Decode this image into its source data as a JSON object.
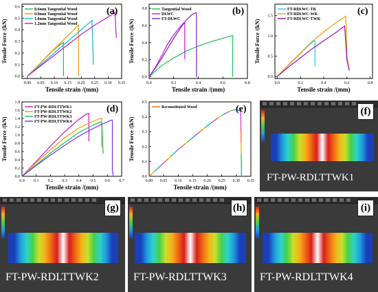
{
  "charts": [
    {
      "label": "(a)",
      "type": "line",
      "ylabel": "Tensile Force  /(kN)",
      "xlabel": "Tensile strain  /(mm)",
      "xlim": [
        -0.02,
        0.35
      ],
      "ylim": [
        -0.02,
        0.62
      ],
      "xticks": [
        0.0,
        0.05,
        0.1,
        0.15,
        0.2,
        0.25,
        0.3,
        0.35
      ],
      "xtick_labels": [
        "0.00",
        "0.05",
        "0.10",
        "0.15",
        "0.20",
        "0.25",
        "0.30",
        "0.35"
      ],
      "yticks": [
        0.0,
        0.1,
        0.2,
        0.3,
        0.4,
        0.5,
        0.6
      ],
      "ytick_labels": [
        "0.0",
        "0.1",
        "0.2",
        "0.3",
        "0.4",
        "0.5",
        "0.6"
      ],
      "legend_position": "top-left",
      "series": [
        {
          "name": "0.6mm Tangential Wood",
          "color": "#22c55e",
          "points": [
            [
              0,
              0
            ],
            [
              0.03,
              0.07
            ],
            [
              0.06,
              0.14
            ],
            [
              0.09,
              0.21
            ],
            [
              0.12,
              0.27
            ],
            [
              0.134,
              0.29
            ],
            [
              0.134,
              0.0
            ]
          ]
        },
        {
          "name": "0.8mm Tangential Wood",
          "color": "#f59e0b",
          "points": [
            [
              0,
              0
            ],
            [
              0.04,
              0.09
            ],
            [
              0.08,
              0.19
            ],
            [
              0.12,
              0.28
            ],
            [
              0.16,
              0.37
            ],
            [
              0.185,
              0.43
            ],
            [
              0.19,
              0.44
            ],
            [
              0.19,
              0.0
            ]
          ]
        },
        {
          "name": "1.0mm Tangential Wood",
          "color": "#22b8cf",
          "points": [
            [
              0,
              0
            ],
            [
              0.05,
              0.1
            ],
            [
              0.1,
              0.2
            ],
            [
              0.15,
              0.3
            ],
            [
              0.2,
              0.4
            ],
            [
              0.235,
              0.47
            ],
            [
              0.24,
              0.48
            ],
            [
              0.245,
              0.1
            ]
          ]
        },
        {
          "name": "1.2mm Tangential Wood",
          "color": "#c026d3",
          "points": [
            [
              0,
              0
            ],
            [
              0.05,
              0.09
            ],
            [
              0.1,
              0.18
            ],
            [
              0.15,
              0.27
            ],
            [
              0.2,
              0.36
            ],
            [
              0.25,
              0.44
            ],
            [
              0.3,
              0.51
            ],
            [
              0.32,
              0.54
            ],
            [
              0.325,
              0.55
            ],
            [
              0.33,
              0.33
            ]
          ]
        }
      ]
    },
    {
      "label": "(b)",
      "type": "line",
      "ylabel": "Tensile Force  /(kN)",
      "xlabel": "Tensile strain  /(mm)",
      "xlim": [
        0,
        0.8
      ],
      "ylim": [
        -0.02,
        0.85
      ],
      "xticks": [
        0.0,
        0.2,
        0.4,
        0.6,
        0.8
      ],
      "xtick_labels": [
        "0.0",
        "0.2",
        "0.4",
        "0.6",
        "0.8"
      ],
      "yticks": [
        0.0,
        0.2,
        0.4,
        0.6,
        0.8
      ],
      "ytick_labels": [
        "0.0",
        "0.2",
        "0.4",
        "0.6",
        "0.8"
      ],
      "legend_position": "top-left",
      "series": [
        {
          "name": "Tangential Wood",
          "color": "#22c55e",
          "points": [
            [
              0,
              0
            ],
            [
              0.1,
              0.13
            ],
            [
              0.2,
              0.22
            ],
            [
              0.3,
              0.3
            ],
            [
              0.4,
              0.36
            ],
            [
              0.5,
              0.41
            ],
            [
              0.6,
              0.45
            ],
            [
              0.67,
              0.48
            ],
            [
              0.68,
              0.48
            ],
            [
              0.68,
              0.0
            ]
          ]
        },
        {
          "name": "DLWC",
          "color": "#c026d3",
          "points": [
            [
              0,
              0
            ],
            [
              0.05,
              0.11
            ],
            [
              0.1,
              0.24
            ],
            [
              0.15,
              0.38
            ],
            [
              0.2,
              0.49
            ],
            [
              0.25,
              0.58
            ],
            [
              0.28,
              0.63
            ],
            [
              0.29,
              0.63
            ],
            [
              0.29,
              0.21
            ]
          ]
        },
        {
          "name": "FT-DLWC",
          "color": "#8b2fc9",
          "points": [
            [
              0,
              0
            ],
            [
              0.05,
              0.1
            ],
            [
              0.1,
              0.21
            ],
            [
              0.15,
              0.33
            ],
            [
              0.2,
              0.45
            ],
            [
              0.25,
              0.56
            ],
            [
              0.3,
              0.66
            ],
            [
              0.35,
              0.73
            ],
            [
              0.38,
              0.75
            ],
            [
              0.385,
              0.75
            ],
            [
              0.385,
              0.0
            ]
          ]
        }
      ]
    },
    {
      "label": "(c)",
      "type": "line",
      "ylabel": "Tensile Force  /(kN)",
      "xlabel": "Tensile strain  /(mm)",
      "xlim": [
        -0.02,
        0.82
      ],
      "ylim": [
        -0.05,
        1.78
      ],
      "xticks": [
        0.0,
        0.2,
        0.4,
        0.6,
        0.8
      ],
      "xtick_labels": [
        "0.0",
        "0.2",
        "0.4",
        "0.6",
        "0.8"
      ],
      "yticks": [
        0.0,
        0.5,
        1.0,
        1.5
      ],
      "ytick_labels": [
        "0.0",
        "0.5",
        "1.0",
        "1.5"
      ],
      "legend_position": "top-left",
      "series": [
        {
          "name": "FT-RDLWC-TK",
          "color": "#22d3ee",
          "points": [
            [
              0,
              0
            ],
            [
              0.1,
              0.29
            ],
            [
              0.2,
              0.57
            ],
            [
              0.3,
              0.84
            ],
            [
              0.32,
              0.88
            ],
            [
              0.325,
              0.88
            ],
            [
              0.325,
              0.25
            ]
          ]
        },
        {
          "name": "FT-RDLWC-WK",
          "color": "#f59e0b",
          "points": [
            [
              0,
              0
            ],
            [
              0.1,
              0.3
            ],
            [
              0.2,
              0.58
            ],
            [
              0.3,
              0.86
            ],
            [
              0.4,
              1.1
            ],
            [
              0.5,
              1.31
            ],
            [
              0.58,
              1.46
            ],
            [
              0.59,
              1.48
            ],
            [
              0.6,
              0.5
            ],
            [
              0.62,
              0.15
            ]
          ]
        },
        {
          "name": "FT-RDLWC-TWK",
          "color": "#a21caf",
          "points": [
            [
              0,
              0
            ],
            [
              0.1,
              0.24
            ],
            [
              0.2,
              0.46
            ],
            [
              0.3,
              0.68
            ],
            [
              0.4,
              0.88
            ],
            [
              0.5,
              1.07
            ],
            [
              0.56,
              1.2
            ],
            [
              0.58,
              1.24
            ],
            [
              0.6,
              0.4
            ],
            [
              0.62,
              0.15
            ]
          ]
        }
      ]
    },
    {
      "label": "(d)",
      "type": "line",
      "ylabel": "Tensile Force  /(kN)",
      "xlabel": "Tensile strain  /(mm)",
      "xlim": [
        0,
        0.7
      ],
      "ylim": [
        0,
        1.8
      ],
      "xticks": [
        0.0,
        0.1,
        0.2,
        0.3,
        0.4,
        0.5,
        0.6,
        0.7
      ],
      "xtick_labels": [
        "0.0",
        "0.1",
        "0.2",
        "0.3",
        "0.4",
        "0.5",
        "0.6",
        "0.7"
      ],
      "yticks": [
        0.0,
        0.2,
        0.4,
        0.6,
        0.8,
        1.0,
        1.2,
        1.4,
        1.6,
        1.8
      ],
      "ytick_labels": [
        "0.0",
        "0.2",
        "0.4",
        "0.6",
        "0.8",
        "1.0",
        "1.2",
        "1.4",
        "1.6",
        "1.8"
      ],
      "legend_position": "top-left",
      "series": [
        {
          "name": "FT-PW-RDLTTWK1",
          "color": "#c026d3",
          "points": [
            [
              0,
              0
            ],
            [
              0.1,
              0.36
            ],
            [
              0.2,
              0.73
            ],
            [
              0.3,
              1.08
            ],
            [
              0.4,
              1.38
            ],
            [
              0.46,
              1.52
            ],
            [
              0.47,
              1.52
            ],
            [
              0.47,
              0.85
            ]
          ]
        },
        {
          "name": "FT-PW-RDLTTWK2",
          "color": "#f59e0b",
          "points": [
            [
              0,
              0
            ],
            [
              0.1,
              0.33
            ],
            [
              0.2,
              0.64
            ],
            [
              0.3,
              0.93
            ],
            [
              0.4,
              1.17
            ],
            [
              0.5,
              1.33
            ],
            [
              0.55,
              1.4
            ],
            [
              0.56,
              1.4
            ],
            [
              0.56,
              0.7
            ]
          ]
        },
        {
          "name": "FT-PW-RDLTTWK3",
          "color": "#22c55e",
          "points": [
            [
              0,
              0
            ],
            [
              0.1,
              0.28
            ],
            [
              0.2,
              0.56
            ],
            [
              0.3,
              0.82
            ],
            [
              0.4,
              1.06
            ],
            [
              0.5,
              1.24
            ],
            [
              0.55,
              1.31
            ],
            [
              0.56,
              1.32
            ],
            [
              0.57,
              0.55
            ]
          ]
        },
        {
          "name": "FT-PW-RDLTTWK4",
          "color": "#7c3aed",
          "points": [
            [
              0,
              0
            ],
            [
              0.1,
              0.26
            ],
            [
              0.2,
              0.51
            ],
            [
              0.3,
              0.75
            ],
            [
              0.4,
              0.97
            ],
            [
              0.5,
              1.16
            ],
            [
              0.6,
              1.32
            ],
            [
              0.63,
              1.36
            ],
            [
              0.635,
              1.36
            ],
            [
              0.635,
              0.15
            ],
            [
              0.64,
              0.02
            ]
          ]
        }
      ]
    },
    {
      "label": "(e)",
      "type": "line",
      "ylabel": "Tensile Force  /(kN)",
      "xlabel": "Tensile strain  /(mm)",
      "xlim": [
        0,
        0.35
      ],
      "ylim": [
        0,
        0.5
      ],
      "xticks": [
        0.0,
        0.05,
        0.1,
        0.15,
        0.2,
        0.25,
        0.3,
        0.35
      ],
      "xtick_labels": [
        "0.00",
        "0.05",
        "0.10",
        "0.15",
        "0.20",
        "0.25",
        "0.30",
        "0.35"
      ],
      "yticks": [
        0.0,
        0.1,
        0.2,
        0.3,
        0.4,
        0.5
      ],
      "ytick_labels": [
        "0.0",
        "0.1",
        "0.2",
        "0.3",
        "0.4",
        "0.5"
      ],
      "legend_position": "top-left",
      "series": [
        {
          "name": "Reconstituted Wood",
          "color": "#f97316",
          "multicolor": true,
          "points": [
            [
              0,
              0
            ],
            [
              0.05,
              0.09
            ],
            [
              0.1,
              0.18
            ],
            [
              0.15,
              0.26
            ],
            [
              0.2,
              0.34
            ],
            [
              0.25,
              0.41
            ],
            [
              0.28,
              0.44
            ],
            [
              0.3,
              0.45
            ],
            [
              0.31,
              0.44
            ],
            [
              0.315,
              0.45
            ],
            [
              0.318,
              0.0
            ]
          ]
        }
      ]
    }
  ],
  "simulations": [
    {
      "label": "(f)",
      "caption": "FT-PW-RDLTTWK1"
    },
    {
      "label": "(g)",
      "caption": "FT-PW-RDLTTWK2"
    },
    {
      "label": "(h)",
      "caption": "FT-PW-RDLTTWK3"
    },
    {
      "label": "(i)",
      "caption": "FT-PW-RDLTTWK4"
    }
  ],
  "colors": {
    "contour": [
      "#1a3fb8",
      "#1f9be0",
      "#2ed3c8",
      "#46d04a",
      "#c8e02a",
      "#f5b21a",
      "#ef6a13",
      "#d91d1d"
    ]
  }
}
